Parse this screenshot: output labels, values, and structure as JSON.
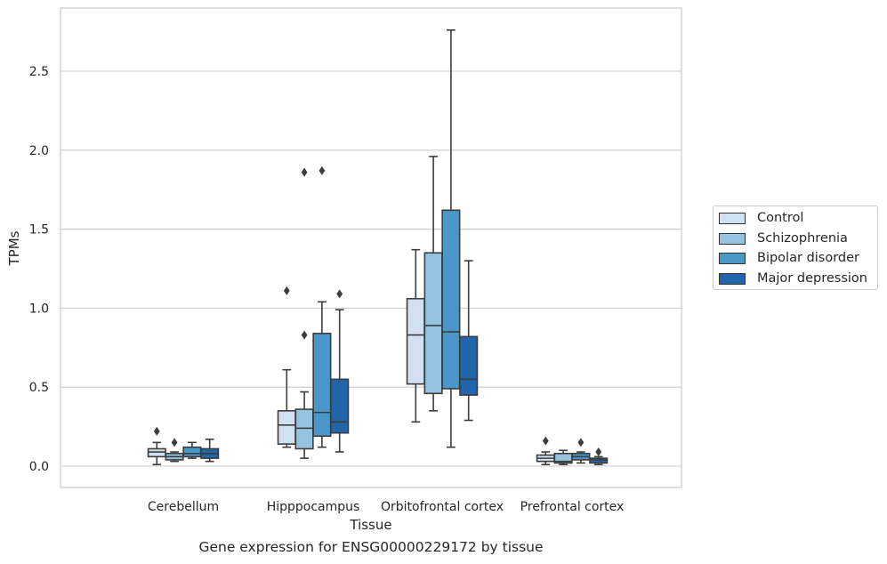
{
  "chart_data": {
    "type": "box",
    "title": "",
    "caption": "Gene expression for ENSG00000229172 by tissue",
    "xlabel": "Tissue",
    "ylabel": "TPMs",
    "ylim": [
      -0.13,
      2.91
    ],
    "yticks": [
      0.0,
      0.5,
      1.0,
      1.5,
      2.0,
      2.5
    ],
    "ytick_labels": [
      "0.0",
      "0.5",
      "1.0",
      "1.5",
      "2.0",
      "2.5"
    ],
    "grid": "horizontal",
    "legend_position": "right",
    "categories": [
      "Cerebellum",
      "Hipppocampus",
      "Orbitofrontal cortex",
      "Prefrontal cortex"
    ],
    "series": [
      {
        "name": "Control",
        "color": "#d0e1f2",
        "boxes": [
          {
            "min": 0.01,
            "q1": 0.06,
            "median": 0.09,
            "q3": 0.11,
            "max": 0.15,
            "outliers": [
              0.22
            ]
          },
          {
            "min": 0.12,
            "q1": 0.14,
            "median": 0.26,
            "q3": 0.35,
            "max": 0.61,
            "outliers": [
              1.11
            ]
          },
          {
            "min": 0.28,
            "q1": 0.52,
            "median": 0.83,
            "q3": 1.06,
            "max": 1.37,
            "outliers": []
          },
          {
            "min": 0.01,
            "q1": 0.03,
            "median": 0.05,
            "q3": 0.07,
            "max": 0.09,
            "outliers": [
              0.16
            ]
          }
        ]
      },
      {
        "name": "Schizophrenia",
        "color": "#94c4df",
        "boxes": [
          {
            "min": 0.03,
            "q1": 0.04,
            "median": 0.06,
            "q3": 0.08,
            "max": 0.09,
            "outliers": [
              0.15
            ]
          },
          {
            "min": 0.05,
            "q1": 0.11,
            "median": 0.24,
            "q3": 0.36,
            "max": 0.47,
            "outliers": [
              0.83,
              1.86
            ]
          },
          {
            "min": 0.35,
            "q1": 0.46,
            "median": 0.89,
            "q3": 1.35,
            "max": 1.96,
            "outliers": []
          },
          {
            "min": 0.01,
            "q1": 0.02,
            "median": 0.03,
            "q3": 0.08,
            "max": 0.1,
            "outliers": []
          }
        ]
      },
      {
        "name": "Bipolar disorder",
        "color": "#4a98c9",
        "boxes": [
          {
            "min": 0.05,
            "q1": 0.06,
            "median": 0.08,
            "q3": 0.12,
            "max": 0.15,
            "outliers": []
          },
          {
            "min": 0.12,
            "q1": 0.19,
            "median": 0.34,
            "q3": 0.84,
            "max": 1.04,
            "outliers": [
              1.87
            ]
          },
          {
            "min": 0.12,
            "q1": 0.49,
            "median": 0.85,
            "q3": 1.62,
            "max": 2.76,
            "outliers": []
          },
          {
            "min": 0.02,
            "q1": 0.04,
            "median": 0.06,
            "q3": 0.08,
            "max": 0.09,
            "outliers": [
              0.15
            ]
          }
        ]
      },
      {
        "name": "Major depression",
        "color": "#2166ac",
        "boxes": [
          {
            "min": 0.03,
            "q1": 0.05,
            "median": 0.08,
            "q3": 0.11,
            "max": 0.17,
            "outliers": []
          },
          {
            "min": 0.09,
            "q1": 0.21,
            "median": 0.28,
            "q3": 0.55,
            "max": 0.99,
            "outliers": [
              1.09
            ]
          },
          {
            "min": 0.29,
            "q1": 0.45,
            "median": 0.55,
            "q3": 0.82,
            "max": 1.3,
            "outliers": []
          },
          {
            "min": 0.01,
            "q1": 0.02,
            "median": 0.04,
            "q3": 0.05,
            "max": 0.06,
            "outliers": [
              0.09
            ]
          }
        ]
      }
    ]
  }
}
